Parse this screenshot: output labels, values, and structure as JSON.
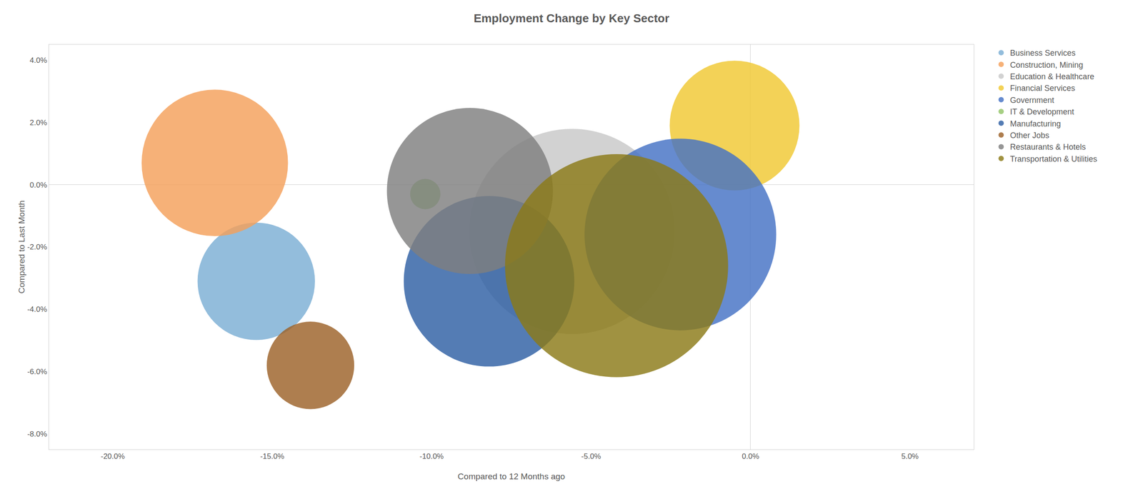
{
  "chart_data": {
    "type": "scatter",
    "title": "Employment Change by Key Sector",
    "xlabel": "Compared to 12 Months ago",
    "ylabel": "Compared to Last Month",
    "xlim": [
      -0.22,
      0.07
    ],
    "ylim": [
      -0.085,
      0.045
    ],
    "xticks": [
      {
        "value": -0.2,
        "label": "-20.0%"
      },
      {
        "value": -0.15,
        "label": "-15.0%"
      },
      {
        "value": -0.1,
        "label": "-10.0%"
      },
      {
        "value": -0.05,
        "label": "-5.0%"
      },
      {
        "value": 0.0,
        "label": "0.0%"
      },
      {
        "value": 0.05,
        "label": "5.0%"
      }
    ],
    "yticks": [
      {
        "value": -0.08,
        "label": "-8.0%"
      },
      {
        "value": -0.06,
        "label": "-6.0%"
      },
      {
        "value": -0.04,
        "label": "-4.0%"
      },
      {
        "value": -0.02,
        "label": "-2.0%"
      },
      {
        "value": 0.0,
        "label": "0.0%"
      },
      {
        "value": 0.02,
        "label": "2.0%"
      },
      {
        "value": 0.04,
        "label": "4.0%"
      }
    ],
    "grid": false,
    "legend": "right",
    "series": [
      {
        "name": "Business Services",
        "color": "#7BAFD4",
        "x": [
          -0.155
        ],
        "values": [
          -0.031
        ],
        "sizes": [
          18000
        ]
      },
      {
        "name": "Construction, Mining",
        "color": "#F4A05A",
        "x": [
          -0.168
        ],
        "values": [
          0.007
        ],
        "sizes": [
          28000
        ]
      },
      {
        "name": "Education & Healthcare",
        "color": "#C8C8C8",
        "x": [
          -0.056
        ],
        "values": [
          -0.015
        ],
        "sizes": [
          55000
        ]
      },
      {
        "name": "Financial Services",
        "color": "#F0C832",
        "x": [
          -0.005
        ],
        "values": [
          0.019
        ],
        "sizes": [
          22000
        ]
      },
      {
        "name": "Government",
        "color": "#4472C4",
        "x": [
          -0.022
        ],
        "values": [
          -0.016
        ],
        "sizes": [
          48000
        ]
      },
      {
        "name": "IT & Development",
        "color": "#92C468",
        "x": [
          -0.102
        ],
        "values": [
          -0.003
        ],
        "sizes": [
          1200
        ]
      },
      {
        "name": "Manufacturing",
        "color": "#2E5FA3",
        "x": [
          -0.082
        ],
        "values": [
          -0.031
        ],
        "sizes": [
          38000
        ]
      },
      {
        "name": "Other Jobs",
        "color": "#9C6128",
        "x": [
          -0.138
        ],
        "values": [
          -0.058
        ],
        "sizes": [
          10000
        ]
      },
      {
        "name": "Restaurants & Hotels",
        "color": "#7F7F7F",
        "x": [
          -0.088
        ],
        "values": [
          -0.002
        ],
        "sizes": [
          36000
        ]
      },
      {
        "name": "Transportation & Utilities",
        "color": "#8B7A17",
        "x": [
          -0.042
        ],
        "values": [
          -0.026
        ],
        "sizes": [
          65000
        ]
      }
    ]
  }
}
